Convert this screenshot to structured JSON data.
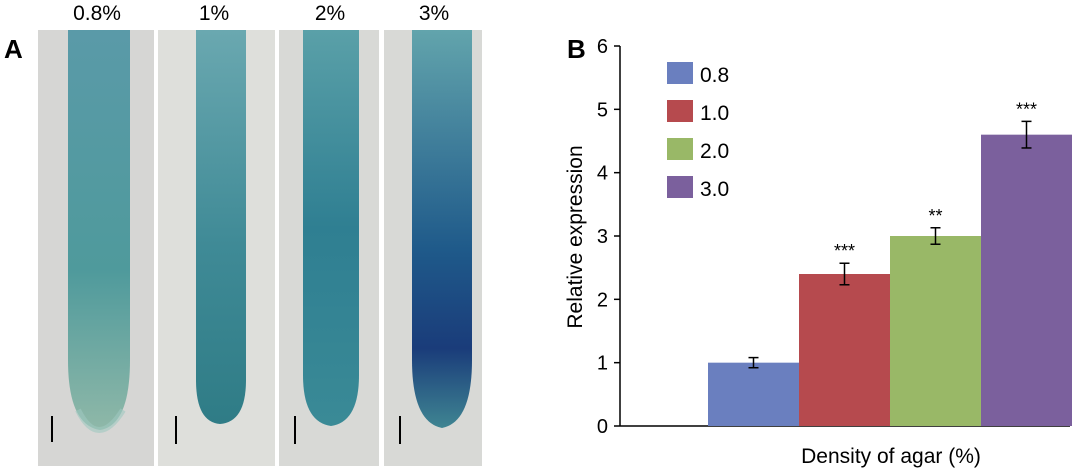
{
  "panel_a": {
    "letter": "A",
    "photos": [
      {
        "label": "0.8%"
      },
      {
        "label": "1%"
      },
      {
        "label": "2%"
      },
      {
        "label": "3%"
      }
    ]
  },
  "panel_b": {
    "letter": "B"
  },
  "chart_data": {
    "type": "bar",
    "title": "",
    "xlabel": "Density of agar (%)",
    "ylabel": "Relative expression",
    "ylim": [
      0,
      6
    ],
    "yticks": [
      0,
      1,
      2,
      3,
      4,
      5,
      6
    ],
    "grid": false,
    "legend_position": "top-left",
    "series": [
      {
        "name": "0.8",
        "value": 1.0,
        "error": 0.08,
        "significance": "",
        "color": "#6a7fbf"
      },
      {
        "name": "1.0",
        "value": 2.4,
        "error": 0.17,
        "significance": "***",
        "color": "#b64a4e"
      },
      {
        "name": "2.0",
        "value": 3.0,
        "error": 0.13,
        "significance": "**",
        "color": "#99b867"
      },
      {
        "name": "3.0",
        "value": 4.6,
        "error": 0.21,
        "significance": "***",
        "color": "#7b609d"
      }
    ]
  }
}
